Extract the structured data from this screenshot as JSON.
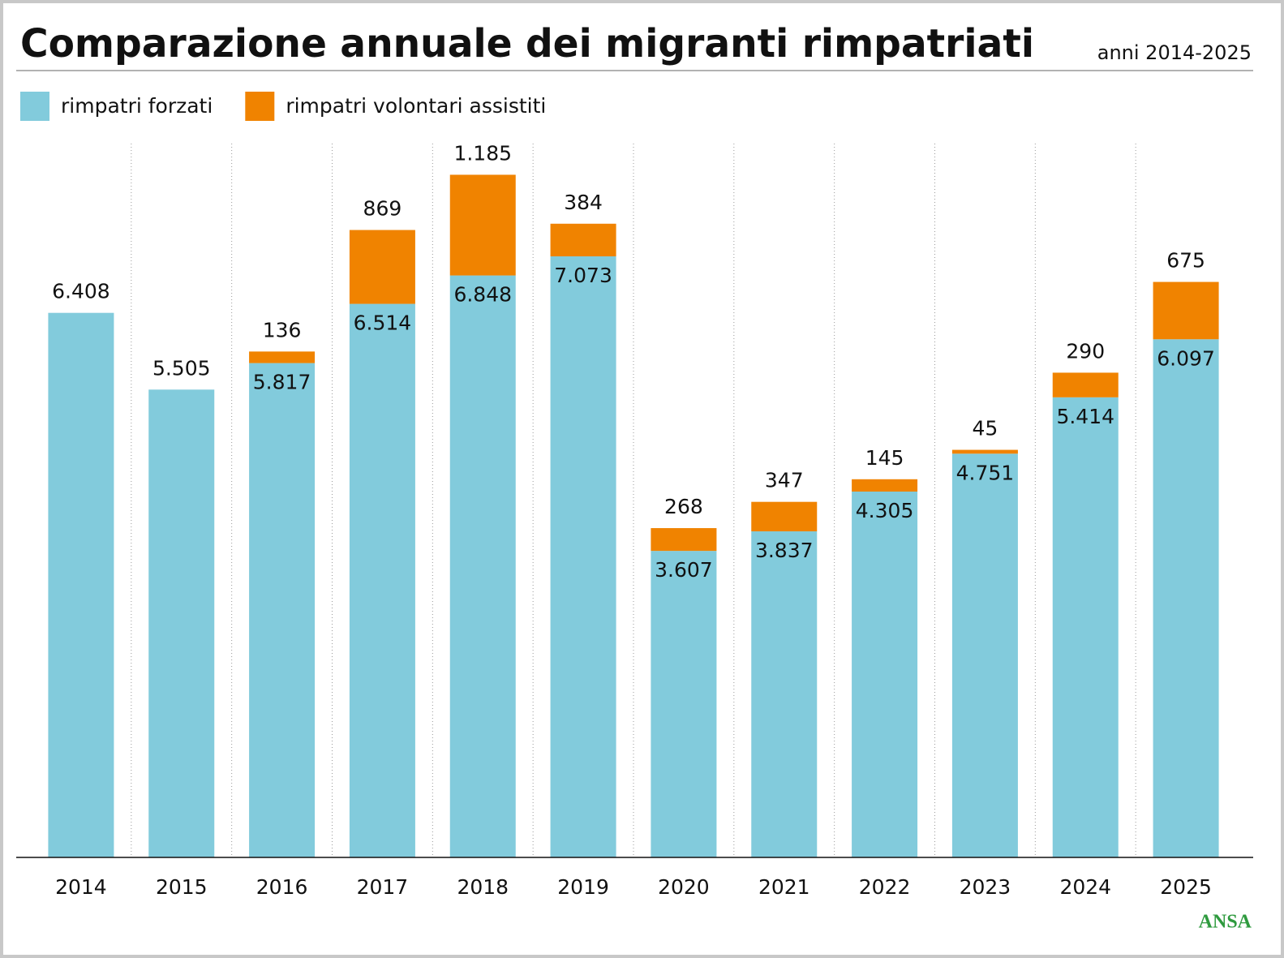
{
  "chart_data": {
    "type": "stacked-bar",
    "title": "Comparazione annuale dei migranti rimpatriati",
    "subtitle": "anni 2014-2025",
    "source": "ANSA",
    "categories": [
      "2014",
      "2015",
      "2016",
      "2017",
      "2018",
      "2019",
      "2020",
      "2021",
      "2022",
      "2023",
      "2024",
      "2025"
    ],
    "series": [
      {
        "name": "rimpatri forzati",
        "color": "#82cbdc",
        "values": [
          6408,
          5505,
          5817,
          6514,
          6848,
          7073,
          3607,
          3837,
          4305,
          4751,
          5414,
          6097
        ],
        "value_labels": [
          "6.408",
          "5.505",
          "5.817",
          "6.514",
          "6.848",
          "7.073",
          "3.607",
          "3.837",
          "4.305",
          "4.751",
          "5.414",
          "6.097"
        ]
      },
      {
        "name": "rimpatri volontari assistiti",
        "color": "#f08300",
        "values": [
          null,
          null,
          136,
          869,
          1185,
          384,
          268,
          347,
          145,
          45,
          290,
          675
        ],
        "value_labels": [
          null,
          null,
          "136",
          "869",
          "1.185",
          "384",
          "268",
          "347",
          "145",
          "45",
          "290",
          "675"
        ]
      }
    ],
    "ylim": [
      0,
      8400
    ]
  }
}
